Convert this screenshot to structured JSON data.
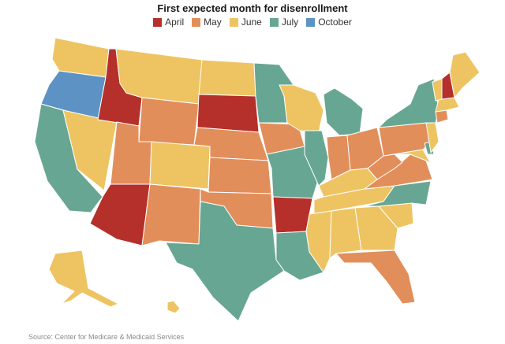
{
  "title": "First expected month for disenrollment",
  "legend": [
    {
      "label": "April",
      "color": "#b5302a"
    },
    {
      "label": "May",
      "color": "#e28e5b"
    },
    {
      "label": "June",
      "color": "#eec462"
    },
    {
      "label": "July",
      "color": "#67a693"
    },
    {
      "label": "October",
      "color": "#5d93c4"
    }
  ],
  "source": "Source: Center for Medicare & Medicaid Services",
  "states": {
    "WA": "June",
    "OR": "October",
    "CA": "July",
    "ID": "April",
    "NV": "June",
    "MT": "June",
    "WY": "May",
    "UT": "May",
    "AZ": "April",
    "CO": "June",
    "NM": "May",
    "ND": "June",
    "SD": "April",
    "NE": "May",
    "KS": "May",
    "OK": "May",
    "TX": "July",
    "MN": "July",
    "IA": "May",
    "MO": "July",
    "AR": "April",
    "LA": "July",
    "WI": "June",
    "IL": "July",
    "MI": "July",
    "IN": "May",
    "OH": "May",
    "KY": "June",
    "TN": "June",
    "MS": "June",
    "AL": "June",
    "GA": "June",
    "FL": "May",
    "SC": "June",
    "NC": "July",
    "VA": "May",
    "WV": "May",
    "PA": "May",
    "NY": "July",
    "VT": "June",
    "NH": "April",
    "ME": "June",
    "MA": "June",
    "CT": "May",
    "NJ": "June",
    "DE": "July",
    "MD": "June",
    "AK": "June",
    "HI": "June"
  }
}
